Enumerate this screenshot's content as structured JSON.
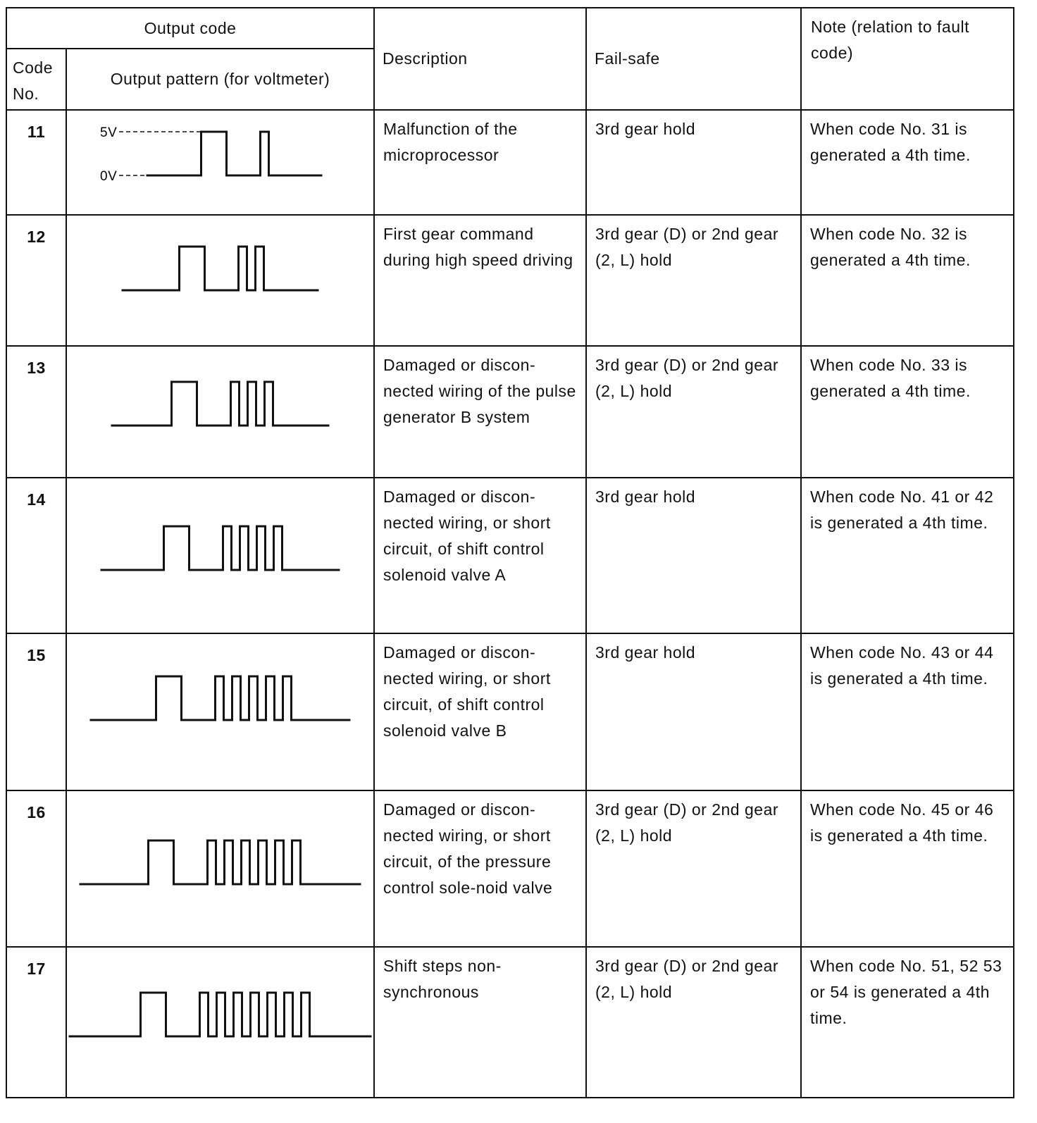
{
  "header": {
    "output_code": "Output code",
    "code_no": "Code No.",
    "output_pattern": "Output pattern (for voltmeter)",
    "description": "Description",
    "fail_safe": "Fail-safe",
    "note": "Note (relation to fault code)"
  },
  "level_labels": {
    "high": "5V",
    "low": "0V"
  },
  "rows": [
    {
      "code": "11",
      "long_pulses": 1,
      "short_pulses": 1,
      "description": "Malfunction of the microprocessor",
      "fail_safe": "3rd gear hold",
      "note": "When code No. 31 is generated a 4th time."
    },
    {
      "code": "12",
      "long_pulses": 1,
      "short_pulses": 2,
      "description": "First gear command during high speed driving",
      "fail_safe": "3rd gear (D) or 2nd gear (2, L) hold",
      "note": "When code No. 32 is generated a 4th time."
    },
    {
      "code": "13",
      "long_pulses": 1,
      "short_pulses": 3,
      "description": "Damaged or discon-nected wiring of the pulse generator B system",
      "fail_safe": "3rd gear (D) or 2nd gear (2, L) hold",
      "note": "When code No. 33 is generated a 4th time."
    },
    {
      "code": "14",
      "long_pulses": 1,
      "short_pulses": 4,
      "description": "Damaged or discon-nected wiring, or short circuit, of shift control solenoid valve A",
      "fail_safe": "3rd gear hold",
      "note": "When code No. 41 or 42 is generated a 4th time."
    },
    {
      "code": "15",
      "long_pulses": 1,
      "short_pulses": 5,
      "description": "Damaged or discon-nected wiring, or short circuit, of shift control solenoid valve B",
      "fail_safe": "3rd gear hold",
      "note": "When code No. 43 or 44 is generated a 4th time."
    },
    {
      "code": "16",
      "long_pulses": 1,
      "short_pulses": 6,
      "description": "Damaged or discon-nected wiring, or short circuit, of the pressure control sole-noid valve",
      "fail_safe": "3rd gear (D) or 2nd gear (2, L) hold",
      "note": "When code No. 45 or 46 is generated a 4th time."
    },
    {
      "code": "17",
      "long_pulses": 1,
      "short_pulses": 7,
      "description": "Shift steps non-synchronous",
      "fail_safe": "3rd gear (D) or 2nd gear (2, L) hold",
      "note": "When code No. 51, 52 53 or 54 is generated a 4th time."
    }
  ]
}
